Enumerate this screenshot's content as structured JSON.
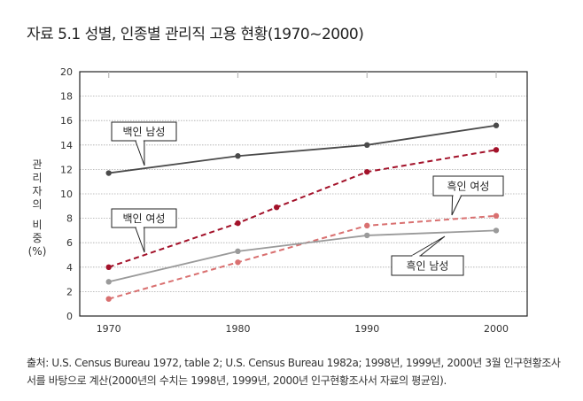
{
  "title": "자료 5.1 성별, 인종별 관리직 고용 현황(1970~2000)",
  "source": "출처: U.S. Census Bureau 1972, table 2; U.S. Census Bureau 1982a; 1998년, 1999년, 2000년 3월 인구현황조사서를 바탕으로 계산(2000년의 수치는 1998년, 1999년, 2000년 인구현황조사서 자료의 평균임).",
  "chart_data": {
    "type": "line",
    "title": "자료 5.1 성별, 인종별 관리직 고용 현황(1970~2000)",
    "xlabel": "",
    "ylabel_chars": [
      "관",
      "리",
      "자",
      "의",
      "",
      "비",
      "중",
      "(%)"
    ],
    "ylabel": "관리자의 비중 (%)",
    "xlim": [
      1967,
      2003
    ],
    "ylim": [
      0,
      20
    ],
    "xticks": [
      1970,
      1980,
      1990,
      2000
    ],
    "yticks": [
      0,
      2,
      4,
      6,
      8,
      10,
      12,
      14,
      16,
      18,
      20
    ],
    "grid": "horizontal dotted",
    "series": [
      {
        "name": "백인 남성",
        "color": "#4a4a4a",
        "dash": false,
        "x": [
          1970,
          1980,
          1990,
          2000
        ],
        "values": [
          11.7,
          13.1,
          14.0,
          15.6
        ]
      },
      {
        "name": "백인 여성",
        "color": "#a3122a",
        "dash": true,
        "x": [
          1970,
          1980,
          1983,
          1990,
          2000
        ],
        "values": [
          4.0,
          7.6,
          8.9,
          11.8,
          13.6
        ]
      },
      {
        "name": "흑인 여성",
        "color": "#d97070",
        "dash": true,
        "x": [
          1970,
          1980,
          1990,
          2000
        ],
        "values": [
          1.4,
          4.4,
          7.4,
          8.2
        ]
      },
      {
        "name": "흑인 남성",
        "color": "#9a9a9a",
        "dash": false,
        "x": [
          1970,
          1980,
          1990,
          2000
        ],
        "values": [
          2.8,
          5.3,
          6.6,
          7.0
        ]
      }
    ]
  }
}
